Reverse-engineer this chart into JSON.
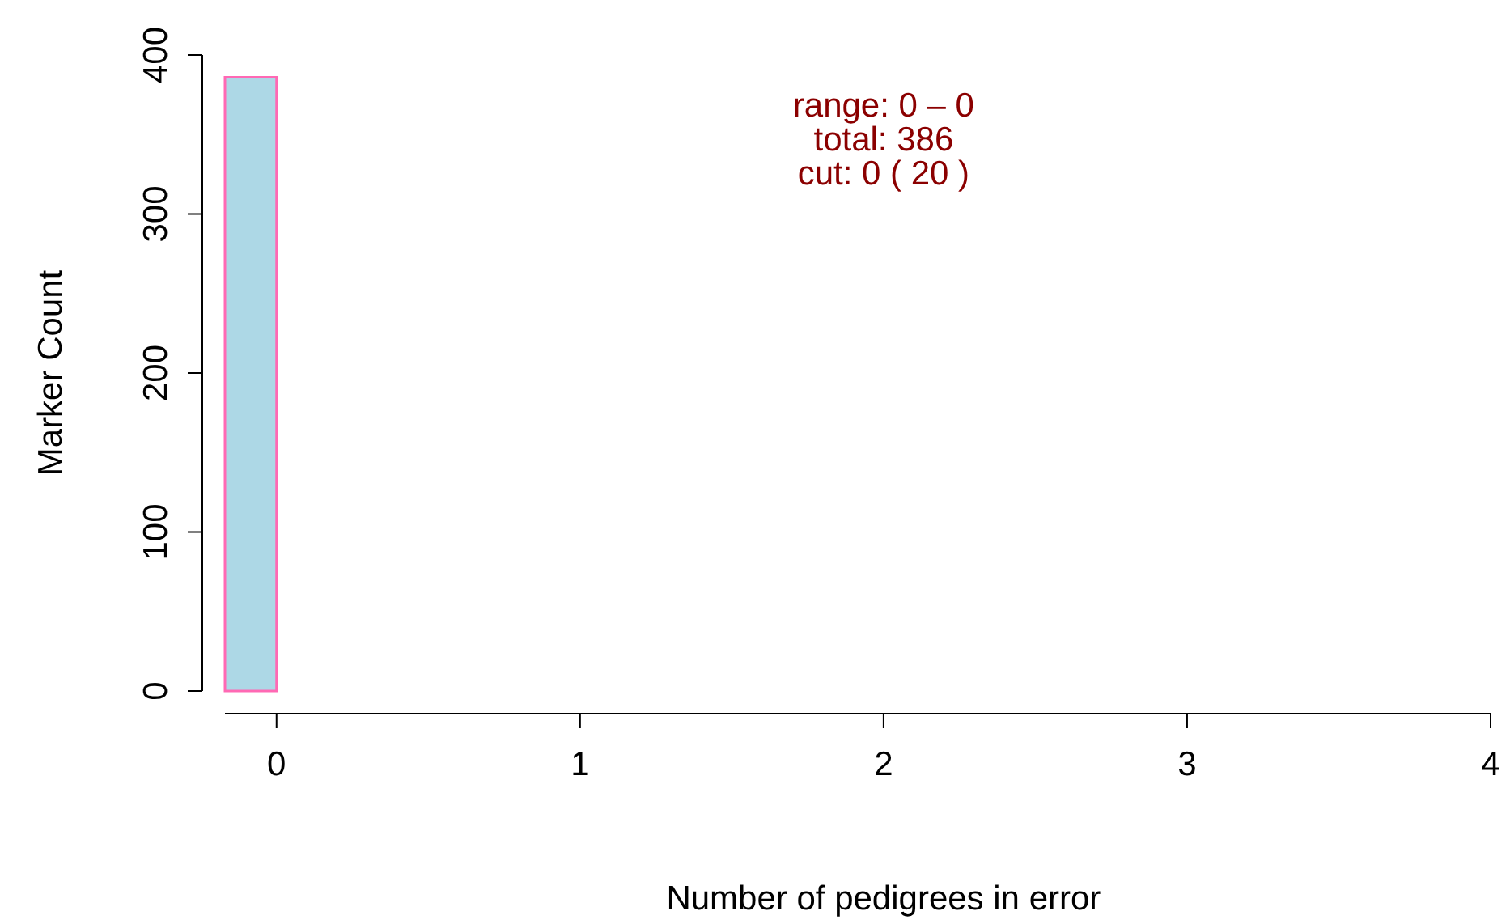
{
  "chart_data": {
    "type": "histogram",
    "xlabel": "Number of pedigrees in error",
    "ylabel": "Marker Count",
    "bins": [
      -0.17,
      0
    ],
    "values": [
      386
    ],
    "color": "#add8e6",
    "xlim": [
      -0.17,
      4
    ],
    "xticks": [
      0,
      1,
      2,
      3,
      4
    ],
    "ylim": [
      0,
      400
    ],
    "yticks": [
      0,
      100,
      200,
      300,
      400
    ],
    "grid": false,
    "annotations": [
      "range: 0 – 0",
      "total:  386",
      "cut:  0 ( 20 )"
    ]
  }
}
